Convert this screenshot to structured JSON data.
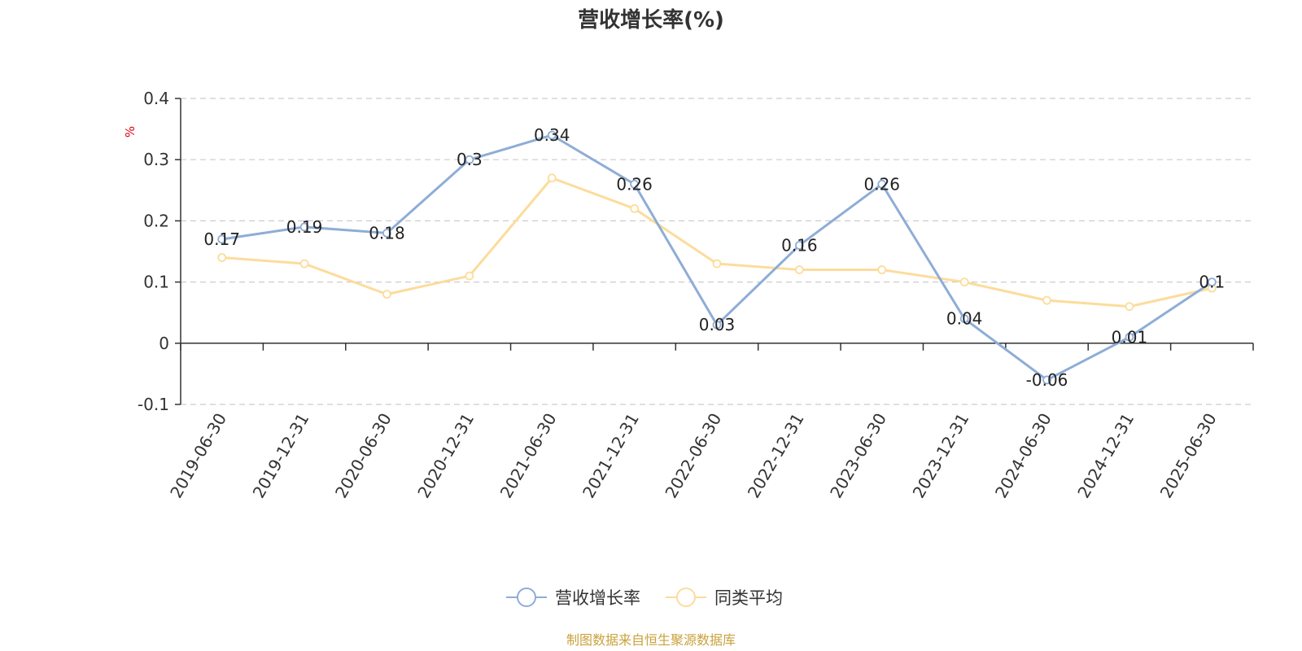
{
  "chart_data": {
    "type": "line",
    "title": "营收增长率(%)",
    "ylabel": "%",
    "xlabel": "",
    "categories": [
      "2019-06-30",
      "2019-12-31",
      "2020-06-30",
      "2020-12-31",
      "2021-06-30",
      "2021-12-31",
      "2022-06-30",
      "2022-12-31",
      "2023-06-30",
      "2023-12-31",
      "2024-06-30",
      "2024-12-31",
      "2025-06-30"
    ],
    "ylim": [
      -0.1,
      0.4
    ],
    "yticks": [
      -0.1,
      0,
      0.1,
      0.2,
      0.3,
      0.4
    ],
    "ytick_labels": [
      "-0.1",
      "0",
      "0.1",
      "0.2",
      "0.3",
      "0.4"
    ],
    "grid": true,
    "legend_position": "bottom",
    "series": [
      {
        "name": "营收增长率",
        "color": "#8eadd6",
        "values": [
          0.17,
          0.19,
          0.18,
          0.3,
          0.34,
          0.26,
          0.03,
          0.16,
          0.26,
          0.04,
          -0.06,
          0.01,
          0.1
        ],
        "labels": [
          "0.17",
          "0.19",
          "0.18",
          "0.3",
          "0.34",
          "0.26",
          "0.03",
          "0.16",
          "0.26",
          "0.04",
          "-0.06",
          "0.01",
          "0.1"
        ]
      },
      {
        "name": "同类平均",
        "color": "#fcdc9c",
        "values": [
          0.14,
          0.13,
          0.08,
          0.11,
          0.27,
          0.22,
          0.13,
          0.12,
          0.12,
          0.1,
          0.07,
          0.06,
          0.09
        ]
      }
    ]
  },
  "colors": {
    "unit": "#e0000f",
    "source": "#c9a23c",
    "axis": "#333333",
    "grid": "#cccccc"
  },
  "source_text": "制图数据来自恒生聚源数据库"
}
